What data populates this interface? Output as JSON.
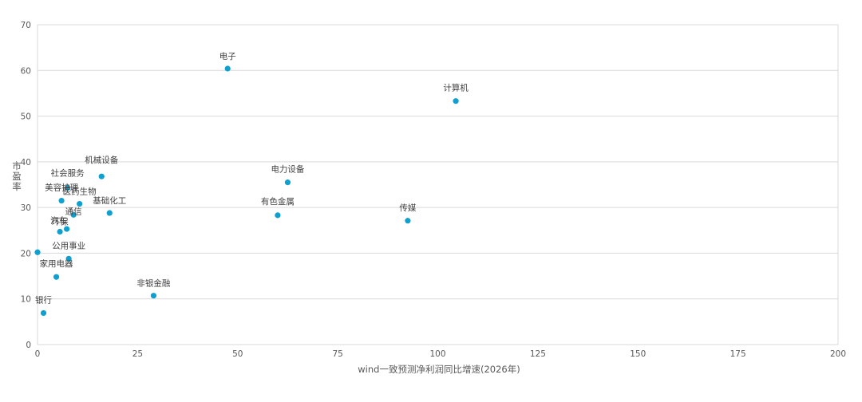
{
  "chart_data": {
    "type": "scatter",
    "title": "",
    "xlabel": "wind一致预测净利润同比增速(2026年)",
    "ylabel": "市盈率",
    "xlim": [
      0,
      200
    ],
    "ylim": [
      0,
      70
    ],
    "x_ticks": [
      "0",
      "25",
      "50",
      "75",
      "100",
      "125",
      "150",
      "175",
      "200"
    ],
    "y_ticks": [
      "0",
      "10",
      "20",
      "30",
      "40",
      "50",
      "60",
      "70"
    ],
    "grid": "horizontal",
    "point_color": "#0fa0cf",
    "points": [
      {
        "label": "电子",
        "x": 47.5,
        "y": 60.4
      },
      {
        "label": "计算机",
        "x": 104.5,
        "y": 53.3
      },
      {
        "label": "电力设备",
        "x": 62.5,
        "y": 35.5
      },
      {
        "label": "有色金属",
        "x": 60,
        "y": 28.3
      },
      {
        "label": "传媒",
        "x": 92.5,
        "y": 27.1
      },
      {
        "label": "机械设备",
        "x": 16,
        "y": 36.8
      },
      {
        "label": "社会服务",
        "x": 7.5,
        "y": 34.3
      },
      {
        "label": "美容护理",
        "x": 6,
        "y": 31.5
      },
      {
        "label": "医药生物",
        "x": 10.5,
        "y": 30.8
      },
      {
        "label": "通信",
        "x": 9,
        "y": 28.4
      },
      {
        "label": "基础化工",
        "x": 18,
        "y": 28.8
      },
      {
        "label": "汽车",
        "x": 7.3,
        "y": 25.3
      },
      {
        "label": "环保",
        "x": 5.6,
        "y": 24.7
      },
      {
        "label": "公用事业",
        "x": 7.8,
        "y": 18.8
      },
      {
        "label": "",
        "x": 0,
        "y": 20.2
      },
      {
        "label": "家用电器",
        "x": 4.7,
        "y": 14.8
      },
      {
        "label": "非银金融",
        "x": 29,
        "y": 10.7
      },
      {
        "label": "银行",
        "x": 1.5,
        "y": 6.9
      }
    ]
  }
}
